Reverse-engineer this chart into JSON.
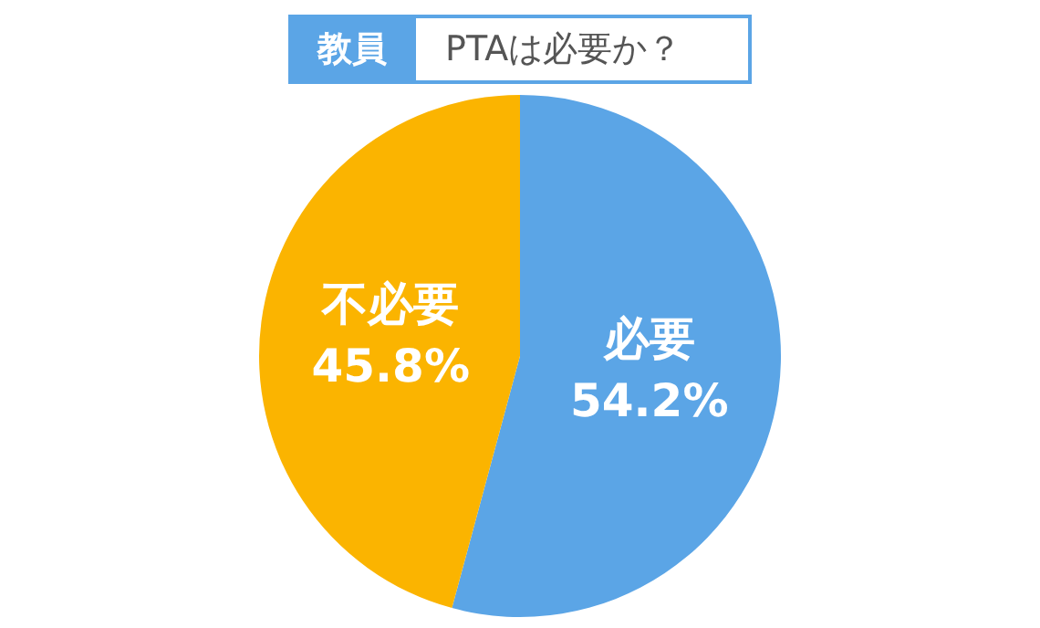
{
  "chart_data": {
    "type": "pie",
    "title": "教員",
    "subtitle": "PTAは必要か？",
    "categories": [
      "必要",
      "不必要"
    ],
    "values": [
      54.2,
      45.8
    ],
    "value_labels": [
      "54.2%",
      "45.8%"
    ],
    "colors": [
      "#5ba5e6",
      "#fbb400"
    ]
  }
}
